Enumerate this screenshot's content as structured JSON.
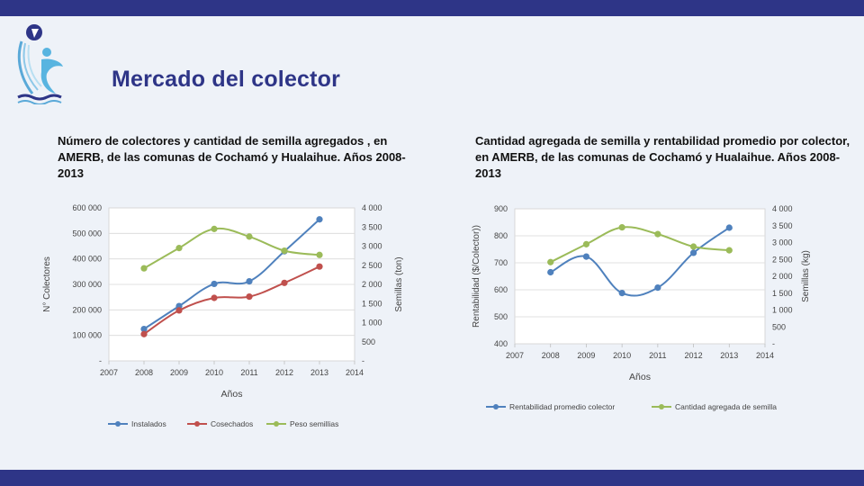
{
  "page": {
    "title": "Mercado del colector",
    "colors": {
      "bars": "#2e3587",
      "title": "#2e3587",
      "background": "#eef2f8"
    },
    "logo_icon": "fishing-foundation-logo-icon"
  },
  "chart_data": [
    {
      "type": "line",
      "title": "Número de colectores y cantidad de semilla agregados  , en AMERB, de las comunas de Cochamó y Hualaihue. Años 2008- 2013",
      "xlabel": "Años",
      "ylabel": "N° Colectores",
      "y2label": "Semillas (ton)",
      "xlim": [
        2007,
        2014
      ],
      "ylim": [
        0,
        600000
      ],
      "y2lim": [
        0,
        4000
      ],
      "x_ticks": [
        "2007",
        "2008",
        "2009",
        "2010",
        "2011",
        "2012",
        "2013",
        "2014"
      ],
      "y_ticks": [
        "-",
        "100 000",
        "200 000",
        "300 000",
        "400 000",
        "500 000",
        "600 000"
      ],
      "y2_ticks": [
        "-",
        "500",
        "1 000",
        "1 500",
        "2 000",
        "2 500",
        "3 000",
        "3 500",
        "4 000"
      ],
      "grid": true,
      "legend_position": "bottom",
      "series": [
        {
          "name": "Instalados",
          "axis": "left",
          "color": "#4f81bd",
          "x": [
            2008,
            2009,
            2010,
            2011,
            2012,
            2013
          ],
          "values": [
            125000,
            215000,
            302000,
            312000,
            430000,
            555000
          ]
        },
        {
          "name": "Cosechados",
          "axis": "left",
          "color": "#c0504d",
          "x": [
            2008,
            2009,
            2010,
            2011,
            2012,
            2013
          ],
          "values": [
            105000,
            198000,
            247000,
            252000,
            306000,
            370000
          ]
        },
        {
          "name": "Peso semillias",
          "axis": "right",
          "color": "#9bbb59",
          "x": [
            2008,
            2009,
            2010,
            2011,
            2012,
            2013
          ],
          "values": [
            2420,
            2950,
            3450,
            3250,
            2880,
            2770
          ]
        }
      ]
    },
    {
      "type": "line",
      "title": "Cantidad agregada  de semilla y rentabilidad promedio por colector, en AMERB, de las comunas de Cochamó y Hualaihue. Años 2008- 2013",
      "xlabel": "Años",
      "ylabel": "Rentabilidad  ($/Colector))",
      "y2label": "Semillas (kg)",
      "xlim": [
        2007,
        2014
      ],
      "ylim": [
        400,
        900
      ],
      "y2lim": [
        0,
        4000
      ],
      "x_ticks": [
        "2007",
        "2008",
        "2009",
        "2010",
        "2011",
        "2012",
        "2013",
        "2014"
      ],
      "y_ticks": [
        "400",
        "500",
        "600",
        "700",
        "800",
        "900"
      ],
      "y2_ticks": [
        "-",
        "500",
        "1 000",
        "1 500",
        "2 000",
        "2 500",
        "3 000",
        "3 500",
        "4 000"
      ],
      "grid": true,
      "legend_position": "bottom",
      "series": [
        {
          "name": "Rentabilidad promedio colector",
          "axis": "left",
          "color": "#4f81bd",
          "x": [
            2008,
            2009,
            2010,
            2011,
            2012,
            2013
          ],
          "values": [
            665,
            723,
            588,
            608,
            737,
            830
          ]
        },
        {
          "name": "Cantidad agregada de semilla",
          "axis": "right",
          "color": "#9bbb59",
          "x": [
            2008,
            2009,
            2010,
            2011,
            2012,
            2013
          ],
          "values": [
            2420,
            2950,
            3450,
            3250,
            2880,
            2770
          ]
        }
      ]
    }
  ]
}
